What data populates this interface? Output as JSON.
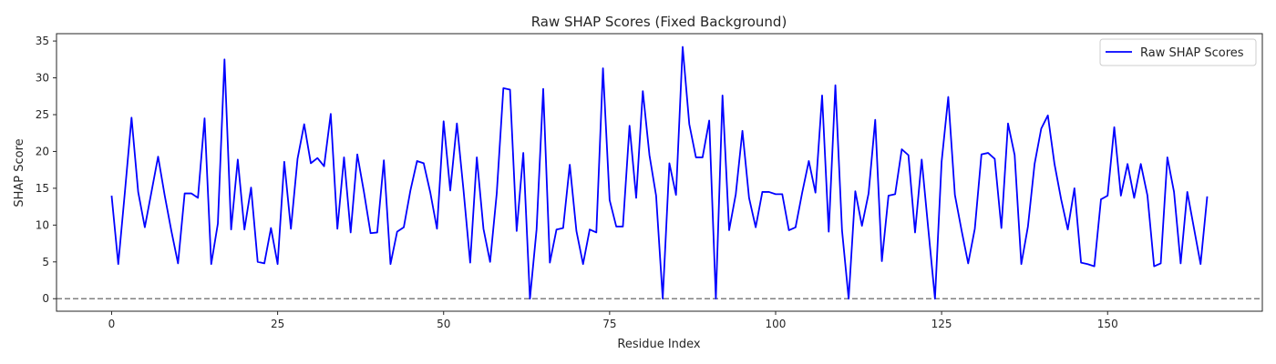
{
  "chart_data": {
    "type": "line",
    "title": "Raw SHAP Scores (Fixed Background)",
    "xlabel": "Residue Index",
    "ylabel": "SHAP Score",
    "xlim": [
      -8.3,
      173.3
    ],
    "ylim": [
      -1.7,
      36
    ],
    "xticks": [
      0,
      25,
      50,
      75,
      100,
      125,
      150
    ],
    "yticks": [
      0,
      5,
      10,
      15,
      20,
      25,
      30,
      35
    ],
    "grid": false,
    "legend_position": "top-right",
    "baseline": {
      "y": 0,
      "style": "dashed",
      "color": "#808080"
    },
    "series": [
      {
        "name": "Raw SHAP Scores",
        "color": "#0000ff",
        "x_start": 0,
        "values": [
          14.0,
          4.7,
          14.5,
          24.6,
          14.5,
          9.7,
          14.5,
          19.3,
          14.0,
          9.2,
          4.8,
          14.3,
          14.3,
          13.7,
          24.5,
          4.7,
          10.2,
          32.5,
          9.4,
          18.9,
          9.4,
          15.1,
          5.0,
          4.8,
          9.6,
          4.7,
          18.6,
          9.5,
          19.0,
          23.7,
          18.4,
          19.1,
          18.0,
          25.1,
          9.5,
          19.2,
          9.0,
          19.6,
          14.5,
          8.9,
          9.0,
          18.8,
          4.7,
          9.1,
          9.7,
          14.7,
          18.7,
          18.4,
          14.4,
          9.5,
          24.1,
          14.7,
          23.8,
          14.7,
          4.9,
          19.2,
          9.5,
          5.0,
          14.3,
          28.6,
          28.4,
          9.2,
          19.8,
          0.0,
          9.4,
          28.5,
          4.9,
          9.4,
          9.6,
          18.2,
          9.2,
          4.7,
          9.4,
          9.0,
          31.3,
          13.4,
          9.8,
          9.8,
          23.5,
          13.7,
          28.2,
          19.5,
          14.0,
          0.0,
          18.4,
          14.1,
          34.2,
          23.7,
          19.2,
          19.2,
          24.2,
          0.0,
          27.6,
          9.3,
          14.2,
          22.8,
          13.7,
          9.7,
          14.5,
          14.5,
          14.2,
          14.2,
          9.3,
          9.7,
          14.4,
          18.7,
          14.4,
          27.6,
          9.1,
          29.0,
          9.3,
          0.0,
          14.6,
          9.9,
          14.3,
          24.3,
          5.1,
          14.0,
          14.2,
          20.3,
          19.5,
          9.0,
          18.9,
          9.4,
          0.0,
          18.6,
          27.4,
          14.1,
          9.3,
          4.8,
          9.5,
          19.6,
          19.8,
          19.0,
          9.6,
          23.8,
          19.5,
          4.7,
          9.8,
          18.3,
          23.1,
          24.9,
          18.3,
          13.5,
          9.4,
          15.0,
          4.9,
          4.7,
          4.4,
          13.5,
          14.0,
          23.3,
          14.0,
          18.3,
          13.7,
          18.3,
          14.0,
          4.4,
          4.8,
          19.2,
          14.5,
          4.8,
          14.5,
          9.6,
          4.7,
          13.9
        ]
      }
    ]
  }
}
